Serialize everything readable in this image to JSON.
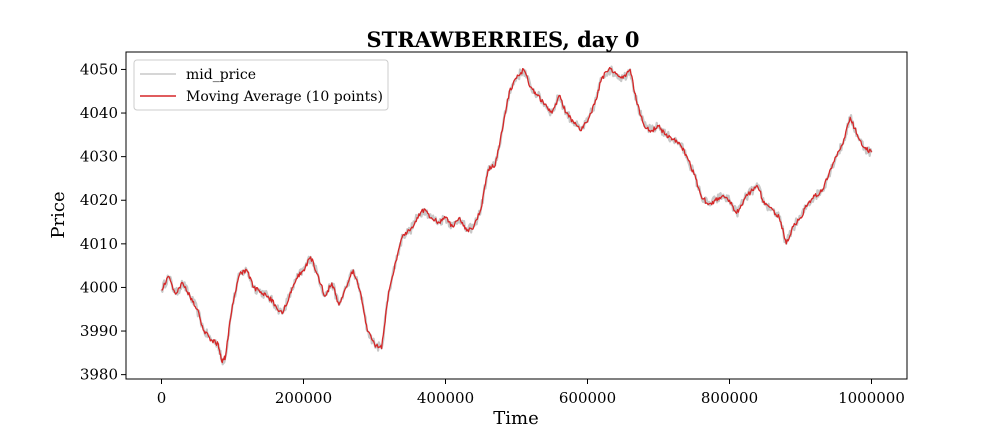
{
  "chart_data": {
    "type": "line",
    "title": "STRAWBERRIES, day 0",
    "xlabel": "Time",
    "ylabel": "Price",
    "xlim": [
      -50000,
      1050000
    ],
    "ylim": [
      3979,
      4054
    ],
    "xticks": [
      0,
      200000,
      400000,
      600000,
      800000,
      1000000
    ],
    "xtick_labels": [
      "0",
      "200000",
      "400000",
      "600000",
      "800000",
      "1000000"
    ],
    "yticks": [
      3980,
      3990,
      4000,
      4010,
      4020,
      4030,
      4040,
      4050
    ],
    "ytick_labels": [
      "3980",
      "3990",
      "4000",
      "4010",
      "4020",
      "4030",
      "4040",
      "4050"
    ],
    "grid": false,
    "legend_position": "top-left",
    "series": [
      {
        "name": "mid_price",
        "color": "#c8c8c8",
        "x": [
          0,
          10000,
          20000,
          30000,
          40000,
          50000,
          60000,
          70000,
          80000,
          85000,
          90000,
          100000,
          110000,
          120000,
          130000,
          140000,
          150000,
          160000,
          170000,
          180000,
          190000,
          200000,
          210000,
          220000,
          230000,
          240000,
          250000,
          260000,
          270000,
          280000,
          290000,
          300000,
          310000,
          320000,
          330000,
          340000,
          350000,
          360000,
          370000,
          380000,
          390000,
          400000,
          410000,
          420000,
          430000,
          440000,
          450000,
          460000,
          470000,
          480000,
          490000,
          500000,
          510000,
          520000,
          530000,
          540000,
          550000,
          560000,
          570000,
          580000,
          590000,
          600000,
          610000,
          620000,
          630000,
          640000,
          650000,
          660000,
          670000,
          680000,
          690000,
          700000,
          710000,
          720000,
          730000,
          740000,
          750000,
          760000,
          770000,
          780000,
          790000,
          800000,
          810000,
          820000,
          830000,
          840000,
          850000,
          860000,
          870000,
          880000,
          890000,
          900000,
          910000,
          920000,
          930000,
          940000,
          950000,
          960000,
          970000,
          980000,
          990000,
          1000000
        ],
        "values": [
          3999.5,
          4002.5,
          3998.5,
          4001,
          3998,
          3995,
          3990,
          3988,
          3987,
          3983,
          3984,
          3996,
          4003,
          4004,
          4000,
          3999,
          3998,
          3996,
          3994,
          3998,
          4002,
          4004,
          4007,
          4003,
          3998,
          4001,
          3996,
          4000,
          4004,
          3999,
          3990,
          3987,
          3986,
          3999,
          4006,
          4012,
          4013,
          4016,
          4018,
          4016,
          4015,
          4016,
          4014,
          4016,
          4013,
          4014,
          4018,
          4027,
          4028,
          4036,
          4045,
          4048,
          4050,
          4046,
          4044,
          4042,
          4040,
          4044,
          4040,
          4038,
          4036,
          4038,
          4042,
          4048,
          4050,
          4049,
          4048,
          4050,
          4042,
          4037,
          4036,
          4037,
          4035,
          4034,
          4033,
          4030,
          4026,
          4021,
          4019,
          4020,
          4021,
          4020,
          4017,
          4020,
          4022,
          4023,
          4019,
          4018,
          4016,
          4010,
          4014,
          4016,
          4019,
          4021,
          4022,
          4026,
          4030,
          4033,
          4039,
          4035,
          4032,
          4031
        ],
        "jitter": 1.1
      },
      {
        "name": "Moving Average (10 points)",
        "color": "#d62728",
        "x": [
          0,
          10000,
          20000,
          30000,
          40000,
          50000,
          60000,
          70000,
          80000,
          85000,
          90000,
          100000,
          110000,
          120000,
          130000,
          140000,
          150000,
          160000,
          170000,
          180000,
          190000,
          200000,
          210000,
          220000,
          230000,
          240000,
          250000,
          260000,
          270000,
          280000,
          290000,
          300000,
          310000,
          320000,
          330000,
          340000,
          350000,
          360000,
          370000,
          380000,
          390000,
          400000,
          410000,
          420000,
          430000,
          440000,
          450000,
          460000,
          470000,
          480000,
          490000,
          500000,
          510000,
          520000,
          530000,
          540000,
          550000,
          560000,
          570000,
          580000,
          590000,
          600000,
          610000,
          620000,
          630000,
          640000,
          650000,
          660000,
          670000,
          680000,
          690000,
          700000,
          710000,
          720000,
          730000,
          740000,
          750000,
          760000,
          770000,
          780000,
          790000,
          800000,
          810000,
          820000,
          830000,
          840000,
          850000,
          860000,
          870000,
          880000,
          890000,
          900000,
          910000,
          920000,
          930000,
          940000,
          950000,
          960000,
          970000,
          980000,
          990000,
          1000000
        ],
        "values": [
          3999.5,
          4002.5,
          3998.5,
          4001,
          3998,
          3995,
          3990,
          3988,
          3987,
          3983,
          3984,
          3996,
          4003,
          4004,
          4000,
          3999,
          3998,
          3996,
          3994,
          3998,
          4002,
          4004,
          4007,
          4003,
          3998,
          4001,
          3996,
          4000,
          4004,
          3999,
          3990,
          3987,
          3986,
          3999,
          4006,
          4012,
          4013,
          4016,
          4018,
          4016,
          4015,
          4016,
          4014,
          4016,
          4013,
          4014,
          4018,
          4027,
          4028,
          4036,
          4045,
          4048,
          4050,
          4046,
          4044,
          4042,
          4040,
          4044,
          4040,
          4038,
          4036,
          4038,
          4042,
          4048,
          4050,
          4049,
          4048,
          4050,
          4042,
          4037,
          4036,
          4037,
          4035,
          4034,
          4033,
          4030,
          4026,
          4021,
          4019,
          4020,
          4021,
          4020,
          4017,
          4020,
          4022,
          4023,
          4019,
          4018,
          4016,
          4010,
          4014,
          4016,
          4019,
          4021,
          4022,
          4026,
          4030,
          4033,
          4039,
          4035,
          4032,
          4031
        ],
        "jitter": 0.55
      }
    ]
  }
}
